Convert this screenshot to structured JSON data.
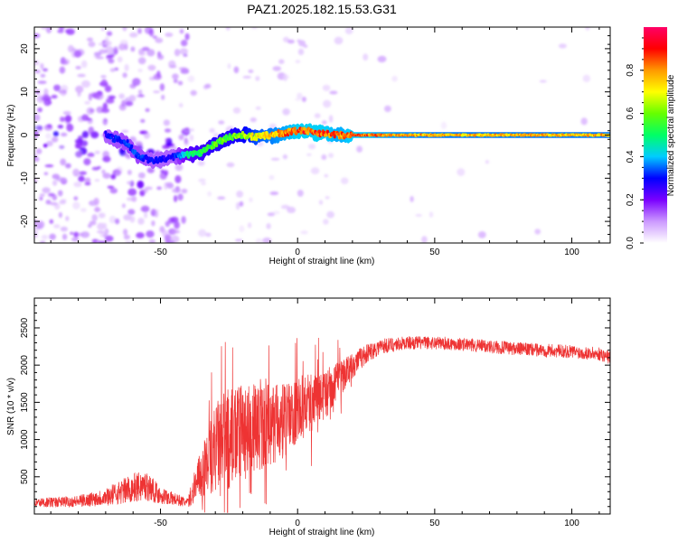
{
  "title": "PAZ1.2025.182.15.53.G31",
  "chart_data": [
    {
      "type": "heatmap",
      "xlabel": "Height of straight line (km)",
      "ylabel": "Frequency (Hz)",
      "xlim": [
        -96,
        114
      ],
      "ylim": [
        -25,
        25
      ],
      "xticks": [
        -50,
        0,
        50,
        100
      ],
      "yticks": [
        -20,
        -10,
        0,
        10,
        20
      ],
      "colorbar": {
        "label": "Normalized spectral amplitude",
        "range": [
          0,
          1
        ],
        "ticks": [
          0.0,
          0.2,
          0.4,
          0.6,
          0.8
        ],
        "colors": [
          "#ffffff",
          "#cc99ff",
          "#7a00ff",
          "#0000ff",
          "#00ccff",
          "#00ff66",
          "#66ff00",
          "#ffff00",
          "#ff9900",
          "#ff0000",
          "#ff0066"
        ]
      },
      "ridge": {
        "x": [
          -70,
          -62,
          -58,
          -52,
          -45,
          -40,
          -35,
          -30,
          -25,
          -20,
          -15,
          -10,
          -5,
          0,
          5,
          10,
          15,
          20,
          30,
          50,
          80,
          114
        ],
        "freq": [
          0,
          -2,
          -5,
          -6,
          -5,
          -4.5,
          -4,
          -2,
          -0.5,
          0,
          -0.5,
          0,
          0.5,
          1,
          0.8,
          0.3,
          0,
          0,
          0,
          0,
          0,
          0
        ],
        "amplitude": [
          0.3,
          0.35,
          0.35,
          0.3,
          0.3,
          0.5,
          0.55,
          0.6,
          0.6,
          0.65,
          0.75,
          0.8,
          0.85,
          0.9,
          0.9,
          0.9,
          0.85,
          0.9,
          0.85,
          0.8,
          0.8,
          0.8
        ]
      },
      "grid": false
    },
    {
      "type": "line",
      "xlabel": "Height of straight line (km)",
      "ylabel": "SNR (10 * v/v)",
      "xlim": [
        -96,
        114
      ],
      "ylim": [
        0,
        2900
      ],
      "xticks": [
        -50,
        0,
        50,
        100
      ],
      "yticks": [
        500,
        1000,
        1500,
        2000,
        2500
      ],
      "color": "#ee3333",
      "envelope": {
        "x": [
          -96,
          -80,
          -70,
          -60,
          -55,
          -50,
          -40,
          -37,
          -33,
          -30,
          -25,
          -20,
          -15,
          -10,
          -5,
          0,
          5,
          10,
          15,
          20,
          25,
          30,
          40,
          50,
          60,
          70,
          80,
          90,
          100,
          110,
          114
        ],
        "mean": [
          150,
          170,
          230,
          350,
          380,
          250,
          150,
          400,
          700,
          900,
          1000,
          1100,
          1150,
          1200,
          1250,
          1400,
          1500,
          1600,
          1800,
          2000,
          2150,
          2250,
          2300,
          2300,
          2280,
          2250,
          2220,
          2200,
          2180,
          2150,
          2100
        ],
        "spread": [
          60,
          80,
          120,
          200,
          200,
          120,
          60,
          250,
          450,
          600,
          700,
          650,
          600,
          550,
          500,
          450,
          400,
          350,
          250,
          180,
          130,
          110,
          90,
          90,
          90,
          90,
          90,
          90,
          90,
          90,
          90
        ]
      },
      "grid": false
    }
  ]
}
